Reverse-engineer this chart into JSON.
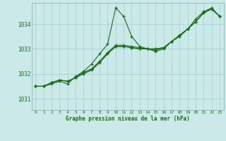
{
  "title": "Graphe pression niveau de la mer (hPa)",
  "bg_color": "#cce9e9",
  "grid_color": "#aad4d4",
  "line_color": "#1a6b1a",
  "xlim": [
    -0.5,
    23.5
  ],
  "ylim": [
    1030.55,
    1034.85
  ],
  "yticks": [
    1031,
    1032,
    1033,
    1034
  ],
  "xticks": [
    0,
    1,
    2,
    3,
    4,
    5,
    6,
    7,
    8,
    9,
    10,
    11,
    12,
    13,
    14,
    15,
    16,
    17,
    18,
    19,
    20,
    21,
    22,
    23
  ],
  "series": [
    [
      1031.5,
      1031.5,
      1031.6,
      1031.7,
      1031.6,
      1031.9,
      1032.1,
      1032.4,
      1032.8,
      1033.2,
      1034.65,
      1034.3,
      1033.5,
      1033.1,
      1033.0,
      1032.9,
      1033.0,
      1033.3,
      1033.5,
      1033.8,
      1034.2,
      1034.5,
      1034.65,
      1034.3
    ],
    [
      1031.5,
      1031.5,
      1031.65,
      1031.75,
      1031.7,
      1031.85,
      1032.05,
      1032.2,
      1032.5,
      1032.85,
      1033.15,
      1033.15,
      1033.1,
      1033.05,
      1033.0,
      1033.0,
      1033.05,
      1033.3,
      1033.55,
      1033.8,
      1034.1,
      1034.45,
      1034.6,
      1034.3
    ],
    [
      1031.5,
      1031.5,
      1031.65,
      1031.75,
      1031.7,
      1031.85,
      1032.0,
      1032.15,
      1032.45,
      1032.8,
      1033.1,
      1033.1,
      1033.05,
      1033.0,
      1033.0,
      1032.95,
      1033.05,
      1033.3,
      1033.55,
      1033.8,
      1034.1,
      1034.45,
      1034.6,
      1034.3
    ],
    [
      1031.5,
      1031.5,
      1031.65,
      1031.75,
      1031.7,
      1031.85,
      1032.05,
      1032.2,
      1032.5,
      1032.85,
      1033.1,
      1033.1,
      1033.05,
      1033.0,
      1033.0,
      1033.0,
      1033.05,
      1033.3,
      1033.55,
      1033.8,
      1034.1,
      1034.45,
      1034.6,
      1034.3
    ]
  ]
}
